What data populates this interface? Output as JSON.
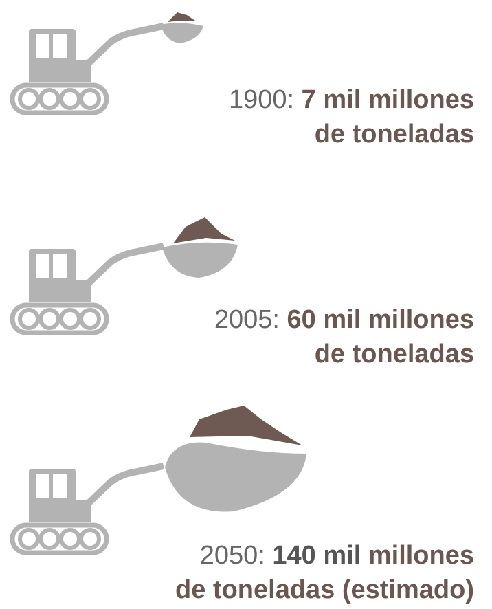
{
  "items": [
    {
      "year": "1900:",
      "amount": "7 mil",
      "scale": "millones",
      "unit": "de toneladas"
    },
    {
      "year": "2005:",
      "amount": "60 mil",
      "scale": "millones",
      "unit": "de toneladas"
    },
    {
      "year": "2050:",
      "amount": "140 mil",
      "scale": "millones",
      "unit": "de toneladas (estimado)"
    }
  ]
}
